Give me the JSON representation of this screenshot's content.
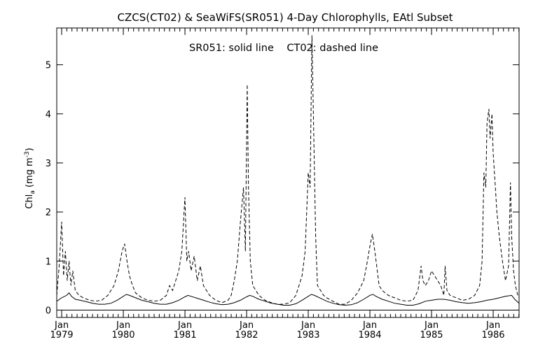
{
  "chart_data": {
    "type": "line",
    "title": "CZCS(CT02) & SeaWiFS(SR051) 4-Day Chlorophylls, EAtl Subset",
    "annotation": "SR051: solid line    CT02: dashed line",
    "ylabel_main": "Chl",
    "ylabel_sub": "a",
    "ylabel_unit": "(mg m",
    "ylabel_exp": "-3",
    "ylabel_close": ")",
    "xlabel": "",
    "xlim": [
      1978.92,
      1986.42
    ],
    "ylim": [
      -0.15,
      5.75
    ],
    "yticks": [
      0,
      1,
      2,
      3,
      4,
      5
    ],
    "xticks": [
      {
        "x": 1979.0,
        "month": "Jan",
        "year": "1979"
      },
      {
        "x": 1980.0,
        "month": "Jan",
        "year": "1980"
      },
      {
        "x": 1981.0,
        "month": "Jan",
        "year": "1981"
      },
      {
        "x": 1982.0,
        "month": "Jan",
        "year": "1982"
      },
      {
        "x": 1983.0,
        "month": "Jan",
        "year": "1983"
      },
      {
        "x": 1984.0,
        "month": "Jan",
        "year": "1984"
      },
      {
        "x": 1985.0,
        "month": "Jan",
        "year": "1985"
      },
      {
        "x": 1986.0,
        "month": "Jan",
        "year": "1986"
      }
    ],
    "reference_line": 0,
    "series": [
      {
        "name": "SR051",
        "style": "solid",
        "x": [
          1978.92,
          1979.0,
          1979.08,
          1979.12,
          1979.16,
          1979.22,
          1979.3,
          1979.4,
          1979.5,
          1979.6,
          1979.7,
          1979.8,
          1979.9,
          1980.0,
          1980.05,
          1980.1,
          1980.2,
          1980.3,
          1980.4,
          1980.5,
          1980.6,
          1980.7,
          1980.8,
          1980.9,
          1981.0,
          1981.05,
          1981.1,
          1981.2,
          1981.3,
          1981.4,
          1981.5,
          1981.6,
          1981.7,
          1981.8,
          1981.9,
          1982.0,
          1982.05,
          1982.1,
          1982.2,
          1982.3,
          1982.4,
          1982.5,
          1982.6,
          1982.7,
          1982.8,
          1982.9,
          1983.0,
          1983.05,
          1983.1,
          1983.2,
          1983.3,
          1983.4,
          1983.5,
          1983.6,
          1983.7,
          1983.8,
          1983.9,
          1984.0,
          1984.05,
          1984.1,
          1984.2,
          1984.3,
          1984.4,
          1984.5,
          1984.6,
          1984.7,
          1984.8,
          1984.9,
          1985.0,
          1985.1,
          1985.2,
          1985.3,
          1985.4,
          1985.5,
          1985.6,
          1985.7,
          1985.8,
          1985.9,
          1986.0,
          1986.1,
          1986.2,
          1986.3,
          1986.35,
          1986.42
        ],
        "values": [
          0.18,
          0.25,
          0.3,
          0.35,
          0.28,
          0.22,
          0.2,
          0.17,
          0.14,
          0.12,
          0.12,
          0.14,
          0.2,
          0.28,
          0.32,
          0.3,
          0.25,
          0.2,
          0.17,
          0.14,
          0.12,
          0.12,
          0.15,
          0.2,
          0.27,
          0.3,
          0.28,
          0.24,
          0.2,
          0.16,
          0.13,
          0.11,
          0.12,
          0.15,
          0.2,
          0.27,
          0.3,
          0.28,
          0.22,
          0.18,
          0.14,
          0.12,
          0.1,
          0.1,
          0.13,
          0.2,
          0.28,
          0.32,
          0.3,
          0.24,
          0.18,
          0.14,
          0.11,
          0.1,
          0.11,
          0.15,
          0.22,
          0.3,
          0.32,
          0.28,
          0.22,
          0.18,
          0.14,
          0.12,
          0.1,
          0.1,
          0.13,
          0.18,
          0.2,
          0.22,
          0.22,
          0.2,
          0.17,
          0.15,
          0.14,
          0.15,
          0.17,
          0.2,
          0.22,
          0.25,
          0.28,
          0.3,
          0.22,
          0.14
        ]
      },
      {
        "name": "CT02",
        "style": "dashed",
        "x": [
          1978.92,
          1978.96,
          1979.0,
          1979.03,
          1979.06,
          1979.09,
          1979.12,
          1979.15,
          1979.18,
          1979.22,
          1979.28,
          1979.35,
          1979.45,
          1979.55,
          1979.65,
          1979.75,
          1979.85,
          1979.92,
          1979.98,
          1980.02,
          1980.06,
          1980.1,
          1980.15,
          1980.2,
          1980.3,
          1980.4,
          1980.5,
          1980.6,
          1980.7,
          1980.75,
          1980.8,
          1980.85,
          1980.9,
          1980.95,
          1981.0,
          1981.03,
          1981.06,
          1981.1,
          1981.15,
          1981.2,
          1981.25,
          1981.3,
          1981.4,
          1981.5,
          1981.6,
          1981.7,
          1981.75,
          1981.8,
          1981.85,
          1981.9,
          1981.95,
          1981.98,
          1982.01,
          1982.03,
          1982.06,
          1982.1,
          1982.15,
          1982.2,
          1982.3,
          1982.4,
          1982.5,
          1982.6,
          1982.7,
          1982.8,
          1982.85,
          1982.9,
          1982.95,
          1983.0,
          1983.03,
          1983.06,
          1983.09,
          1983.12,
          1983.15,
          1983.2,
          1983.25,
          1983.3,
          1983.4,
          1983.5,
          1983.6,
          1983.7,
          1983.8,
          1983.9,
          1983.96,
          1984.0,
          1984.04,
          1984.08,
          1984.12,
          1984.15,
          1984.2,
          1984.3,
          1984.4,
          1984.5,
          1984.6,
          1984.7,
          1984.78,
          1984.83,
          1984.86,
          1984.9,
          1984.95,
          1985.0,
          1985.05,
          1985.1,
          1985.15,
          1985.2,
          1985.22,
          1985.25,
          1985.3,
          1985.4,
          1985.5,
          1985.6,
          1985.7,
          1985.78,
          1985.82,
          1985.85,
          1985.88,
          1985.9,
          1985.93,
          1985.95,
          1985.98,
          1986.0,
          1986.03,
          1986.06,
          1986.1,
          1986.15,
          1986.2,
          1986.25,
          1986.28,
          1986.3,
          1986.33,
          1986.36,
          1986.4,
          1986.42
        ],
        "values": [
          0.3,
          0.9,
          1.8,
          0.7,
          1.2,
          0.6,
          1.0,
          0.5,
          0.8,
          0.4,
          0.3,
          0.25,
          0.2,
          0.18,
          0.2,
          0.3,
          0.5,
          0.8,
          1.2,
          1.35,
          1.0,
          0.7,
          0.5,
          0.35,
          0.25,
          0.2,
          0.18,
          0.2,
          0.3,
          0.5,
          0.4,
          0.6,
          0.8,
          1.2,
          2.3,
          1.0,
          1.2,
          0.8,
          1.1,
          0.6,
          0.9,
          0.5,
          0.3,
          0.2,
          0.15,
          0.2,
          0.3,
          0.6,
          1.0,
          1.8,
          2.5,
          1.2,
          4.6,
          2.5,
          1.0,
          0.5,
          0.4,
          0.3,
          0.2,
          0.15,
          0.12,
          0.12,
          0.15,
          0.3,
          0.5,
          0.7,
          1.2,
          2.8,
          2.5,
          5.6,
          3.5,
          1.5,
          0.5,
          0.4,
          0.3,
          0.25,
          0.18,
          0.12,
          0.12,
          0.2,
          0.35,
          0.6,
          1.0,
          1.3,
          1.55,
          1.2,
          0.8,
          0.5,
          0.4,
          0.3,
          0.25,
          0.2,
          0.18,
          0.2,
          0.4,
          0.9,
          0.6,
          0.5,
          0.6,
          0.8,
          0.7,
          0.6,
          0.5,
          0.3,
          0.9,
          0.4,
          0.3,
          0.25,
          0.2,
          0.22,
          0.3,
          0.5,
          1.0,
          2.8,
          2.5,
          3.8,
          4.1,
          3.5,
          4.0,
          3.2,
          2.6,
          2.0,
          1.5,
          1.0,
          0.6,
          0.9,
          2.6,
          1.5,
          0.8,
          0.5,
          0.3,
          0.25
        ]
      }
    ]
  }
}
